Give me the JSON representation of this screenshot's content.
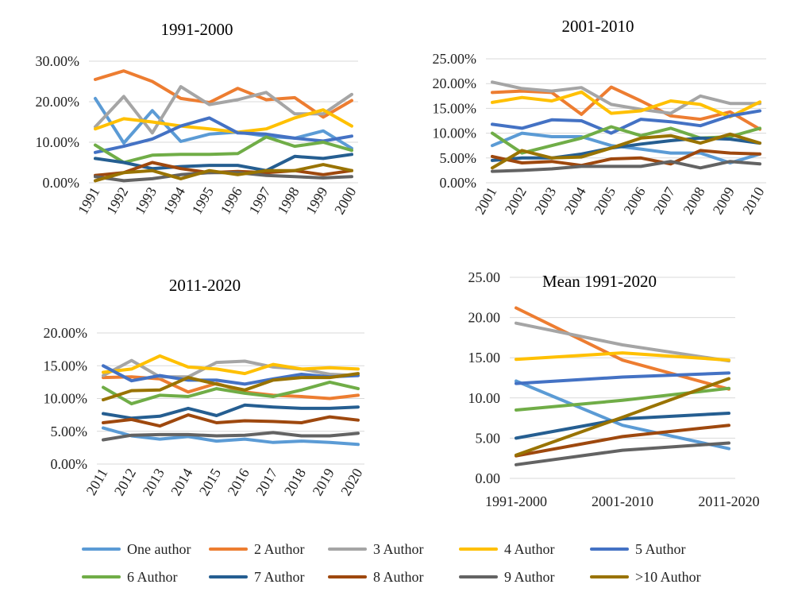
{
  "chart_data": [
    {
      "type": "line",
      "title": "1991-2000",
      "categories": [
        "1991",
        "1992",
        "1993",
        "1994",
        "1995",
        "1996",
        "1997",
        "1998",
        "1999",
        "2000"
      ],
      "ylim": [
        0,
        30
      ],
      "yticks": [
        "0.00%",
        "10.00%",
        "20.00%",
        "30.00%"
      ],
      "ytick_values": [
        0,
        10,
        20,
        30
      ],
      "grid": true,
      "series": [
        {
          "name": "One author",
          "values": [
            20.8,
            9.8,
            17.8,
            10.2,
            12.0,
            12.5,
            11.5,
            11.0,
            12.8,
            8.5
          ]
        },
        {
          "name": "2 Author",
          "values": [
            25.5,
            27.6,
            25.0,
            20.8,
            19.8,
            23.3,
            20.5,
            21.0,
            16.2,
            20.3
          ]
        },
        {
          "name": "3 Author",
          "values": [
            13.8,
            21.3,
            12.3,
            23.7,
            19.3,
            20.5,
            22.3,
            17.0,
            17.0,
            21.8
          ]
        },
        {
          "name": "4 Author",
          "values": [
            13.3,
            15.8,
            15.0,
            14.0,
            13.3,
            12.5,
            13.3,
            16.0,
            18.0,
            14.0
          ]
        },
        {
          "name": "5 Author",
          "values": [
            7.5,
            9.0,
            10.8,
            14.0,
            16.0,
            12.3,
            12.0,
            11.0,
            10.3,
            11.5
          ]
        },
        {
          "name": "6 Author",
          "values": [
            9.3,
            5.0,
            6.8,
            7.0,
            7.0,
            7.2,
            11.3,
            9.0,
            10.0,
            8.0
          ]
        },
        {
          "name": "7 Author",
          "values": [
            6.0,
            5.0,
            3.5,
            4.0,
            4.3,
            4.3,
            3.0,
            6.5,
            6.0,
            7.0
          ]
        },
        {
          "name": "8 Author",
          "values": [
            1.8,
            2.5,
            5.0,
            3.5,
            2.5,
            2.8,
            2.5,
            3.0,
            2.0,
            3.0
          ]
        },
        {
          "name": "9 Author",
          "values": [
            1.5,
            0.5,
            1.0,
            2.0,
            2.5,
            2.5,
            1.8,
            1.5,
            1.2,
            1.5
          ]
        },
        {
          "name": ">10 Author",
          "values": [
            0.5,
            2.5,
            3.0,
            1.0,
            3.0,
            2.0,
            3.0,
            3.0,
            4.5,
            3.0
          ]
        }
      ]
    },
    {
      "type": "line",
      "title": "2001-2010",
      "categories": [
        "2001",
        "2002",
        "2003",
        "2004",
        "2005",
        "2006",
        "2007",
        "2008",
        "2009",
        "2010"
      ],
      "ylim": [
        0,
        25
      ],
      "yticks": [
        "0.00%",
        "5.00%",
        "10.00%",
        "15.00%",
        "20.00%",
        "25.00%"
      ],
      "ytick_values": [
        0,
        5,
        10,
        15,
        20,
        25
      ],
      "grid": true,
      "series": [
        {
          "name": "One author",
          "values": [
            7.5,
            10.0,
            9.3,
            9.3,
            7.5,
            6.8,
            6.0,
            6.0,
            4.0,
            5.8
          ]
        },
        {
          "name": "2 Author",
          "values": [
            18.2,
            18.5,
            18.2,
            13.8,
            19.3,
            16.5,
            13.5,
            12.8,
            14.3,
            10.8
          ]
        },
        {
          "name": "3 Author",
          "values": [
            20.3,
            19.0,
            18.5,
            19.2,
            15.8,
            14.8,
            14.0,
            17.5,
            16.0,
            16.0
          ]
        },
        {
          "name": "4 Author",
          "values": [
            16.2,
            17.2,
            16.5,
            18.3,
            14.0,
            14.5,
            16.5,
            15.8,
            13.3,
            16.3
          ]
        },
        {
          "name": "5 Author",
          "values": [
            11.8,
            11.0,
            12.7,
            12.5,
            10.0,
            12.8,
            12.3,
            11.5,
            13.5,
            14.5
          ]
        },
        {
          "name": "6 Author",
          "values": [
            10.0,
            6.0,
            7.5,
            9.0,
            11.3,
            9.5,
            11.0,
            9.0,
            9.3,
            11.0
          ]
        },
        {
          "name": "7 Author",
          "values": [
            4.5,
            5.0,
            5.0,
            5.8,
            7.0,
            7.8,
            8.5,
            9.0,
            8.8,
            8.0
          ]
        },
        {
          "name": "8 Author",
          "values": [
            5.3,
            4.0,
            4.3,
            3.5,
            4.8,
            5.0,
            3.8,
            6.5,
            6.0,
            5.8
          ]
        },
        {
          "name": "9 Author",
          "values": [
            2.3,
            2.5,
            2.8,
            3.3,
            3.3,
            3.3,
            4.3,
            3.0,
            4.3,
            3.8
          ]
        },
        {
          "name": ">10 Author",
          "values": [
            3.0,
            6.5,
            5.0,
            5.2,
            7.0,
            9.0,
            9.5,
            8.0,
            9.8,
            8.0
          ]
        }
      ]
    },
    {
      "type": "line",
      "title": "2011-2020",
      "categories": [
        "2011",
        "2012",
        "2013",
        "2014",
        "2015",
        "2016",
        "2017",
        "2018",
        "2019",
        "2020"
      ],
      "ylim": [
        0,
        20
      ],
      "yticks": [
        "0.00%",
        "5.00%",
        "10.00%",
        "15.00%",
        "20.00%"
      ],
      "ytick_values": [
        0,
        5,
        10,
        15,
        20
      ],
      "grid": true,
      "series": [
        {
          "name": "One author",
          "values": [
            5.5,
            4.3,
            3.8,
            4.2,
            3.5,
            3.8,
            3.3,
            3.5,
            3.3,
            3.0
          ]
        },
        {
          "name": "2 Author",
          "values": [
            13.2,
            13.3,
            13.0,
            11.0,
            12.3,
            11.0,
            10.5,
            10.3,
            10.0,
            10.5
          ]
        },
        {
          "name": "3 Author",
          "values": [
            13.5,
            15.8,
            13.3,
            13.3,
            15.5,
            15.7,
            14.8,
            14.5,
            13.7,
            13.5
          ]
        },
        {
          "name": "4 Author",
          "values": [
            14.0,
            14.5,
            16.5,
            14.8,
            14.5,
            13.8,
            15.2,
            14.5,
            14.7,
            14.5
          ]
        },
        {
          "name": "5 Author",
          "values": [
            15.0,
            12.7,
            13.5,
            12.8,
            12.8,
            12.2,
            13.0,
            13.7,
            13.3,
            13.5
          ]
        },
        {
          "name": "6 Author",
          "values": [
            11.7,
            9.2,
            10.5,
            10.3,
            11.5,
            10.8,
            10.3,
            11.3,
            12.5,
            11.5
          ]
        },
        {
          "name": "7 Author",
          "values": [
            7.7,
            7.0,
            7.3,
            8.5,
            7.4,
            9.0,
            8.7,
            8.5,
            8.5,
            8.7
          ]
        },
        {
          "name": "8 Author",
          "values": [
            6.3,
            6.8,
            5.8,
            7.5,
            6.3,
            6.6,
            6.5,
            6.3,
            7.2,
            6.7
          ]
        },
        {
          "name": "9 Author",
          "values": [
            3.7,
            4.4,
            4.5,
            4.5,
            4.3,
            4.4,
            4.8,
            4.3,
            4.3,
            4.7
          ]
        },
        {
          "name": ">10 Author",
          "values": [
            9.8,
            11.2,
            11.3,
            13.2,
            12.2,
            11.3,
            12.8,
            13.2,
            13.2,
            13.8
          ]
        }
      ]
    },
    {
      "type": "line",
      "title": "Mean 1991-2020",
      "categories": [
        "1991-2000",
        "2001-2010",
        "2011-2020"
      ],
      "ylim": [
        0,
        25
      ],
      "yticks": [
        "0.00",
        "5.00",
        "10.00",
        "15.00",
        "20.00",
        "25.00"
      ],
      "ytick_values": [
        0,
        5,
        10,
        15,
        20,
        25
      ],
      "grid": true,
      "series": [
        {
          "name": "One author",
          "values": [
            12.1,
            6.6,
            3.7
          ]
        },
        {
          "name": "2 Author",
          "values": [
            21.2,
            14.7,
            11.1
          ]
        },
        {
          "name": "3 Author",
          "values": [
            19.3,
            16.6,
            14.6
          ]
        },
        {
          "name": "4 Author",
          "values": [
            14.8,
            15.6,
            14.7
          ]
        },
        {
          "name": "5 Author",
          "values": [
            11.8,
            12.6,
            13.1
          ]
        },
        {
          "name": "6 Author",
          "values": [
            8.5,
            9.7,
            11.2
          ]
        },
        {
          "name": "7 Author",
          "values": [
            5.0,
            7.4,
            8.1
          ]
        },
        {
          "name": "8 Author",
          "values": [
            2.8,
            5.2,
            6.6
          ]
        },
        {
          "name": "9 Author",
          "values": [
            1.7,
            3.5,
            4.4
          ]
        },
        {
          "name": ">10 Author",
          "values": [
            2.9,
            7.6,
            12.4
          ]
        }
      ]
    }
  ],
  "colors": [
    "#5b9bd5",
    "#ed7d31",
    "#a5a5a5",
    "#ffc000",
    "#4472c4",
    "#70ad47",
    "#255e91",
    "#9e480e",
    "#636363",
    "#997300"
  ],
  "legend": {
    "placement": "bottom",
    "items": [
      "One author",
      "2 Author",
      "3 Author",
      "4 Author",
      "5 Author",
      "6 Author",
      "7 Author",
      "8 Author",
      "9 Author",
      ">10 Author"
    ]
  }
}
